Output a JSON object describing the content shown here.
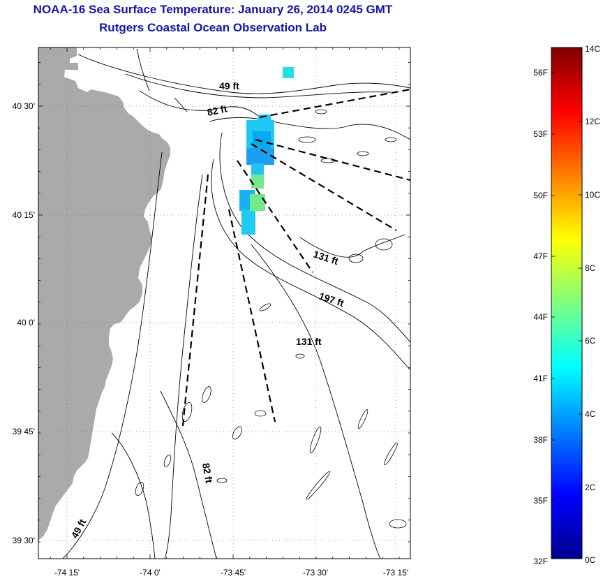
{
  "header": {
    "title": "NOAA-16 Sea Surface Temperature:  January 26, 2014 0245 GMT",
    "subtitle": "Rutgers Coastal Ocean Observation Lab"
  },
  "map": {
    "lat_ticks": [
      {
        "id": "lat-40-30",
        "label": "40 30'"
      },
      {
        "id": "lat-40-15",
        "label": "40 15'"
      },
      {
        "id": "lat-40-0",
        "label": "40 0'"
      },
      {
        "id": "lat-39-45",
        "label": "39 45'"
      },
      {
        "id": "lat-39-30",
        "label": "39 30'"
      }
    ],
    "lon_ticks": [
      {
        "id": "lon-74-15",
        "label": "-74 15'"
      },
      {
        "id": "lon-74-0",
        "label": "-74 0'"
      },
      {
        "id": "lon-73-45",
        "label": "-73 45'"
      },
      {
        "id": "lon-73-30",
        "label": "-73 30'"
      },
      {
        "id": "lon-73-15",
        "label": "-73 15'"
      }
    ],
    "contour_labels": [
      {
        "id": "contour-49ft-north",
        "text": "49 ft"
      },
      {
        "id": "contour-82ft-north",
        "text": "82 ft"
      },
      {
        "id": "contour-131ft-upper",
        "text": "131 ft"
      },
      {
        "id": "contour-197ft",
        "text": "197 ft"
      },
      {
        "id": "contour-131ft-lower",
        "text": "131 ft"
      },
      {
        "id": "contour-82ft-south",
        "text": "82 ft"
      },
      {
        "id": "contour-49ft-south",
        "text": "49 ft"
      }
    ],
    "colors": {
      "land": "#aaaaaa",
      "sst_cyan": "#22e0e8",
      "sst_blue_light": "#1ec8f4",
      "sst_blue": "#0aa8f0",
      "sst_green": "#74e88c"
    }
  },
  "colorbar": {
    "fahrenheit_labels": [
      "56F",
      "53F",
      "50F",
      "47F",
      "44F",
      "41F",
      "38F",
      "35F",
      "32F"
    ],
    "celsius_labels": [
      "14C",
      "12C",
      "10C",
      "8C",
      "6C",
      "4C",
      "2C",
      "0C"
    ],
    "colormap": "jet"
  }
}
